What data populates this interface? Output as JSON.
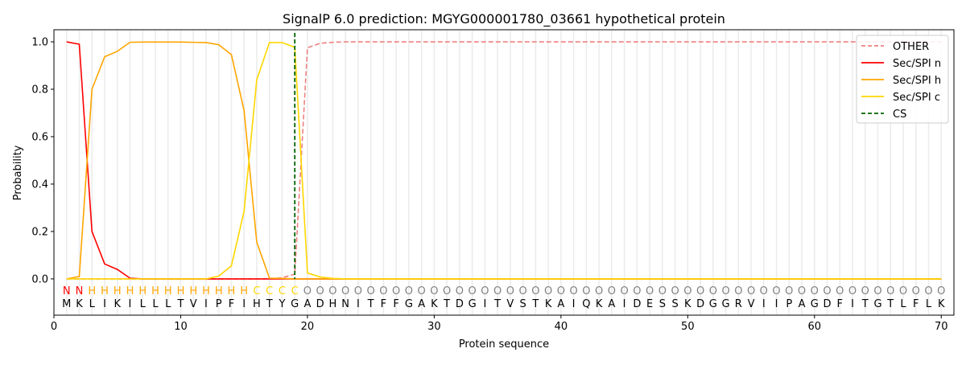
{
  "chart_data": {
    "type": "line",
    "title": "SignalP 6.0 prediction: MGYG000001780_03661 hypothetical protein",
    "xlabel": "Protein sequence",
    "ylabel": "Probability",
    "xlim": [
      0,
      71
    ],
    "ylim": [
      -0.153,
      1.051
    ],
    "xticks": [
      0,
      10,
      20,
      30,
      40,
      50,
      60,
      70
    ],
    "yticks": [
      0.0,
      0.2,
      0.4,
      0.6,
      0.8,
      1.0
    ],
    "ytick_labels": [
      "0.0",
      "0.2",
      "0.4",
      "0.6",
      "0.8",
      "1.0"
    ],
    "grid": "vertical per residue",
    "legend_position": "top-right",
    "sequence": "MKLIKILLLTVIPFIHTYGADHNITFFGAKTDGITVSTKAIQKAIDESSKDGGRVIIPAGDFITGTLFLK",
    "region_labels": "NNHHHHHHHHHHHHHCCCCOOOOOOOOOOOOOOOOOOOOOOOOOOOOOOOOOOOOOOOOOOOOOOOOOOO",
    "region_colors": {
      "N": "#ff0000",
      "H": "#ffa500",
      "C": "#ffd700",
      "O": "#808080"
    },
    "cleavage_site": 19,
    "series": [
      {
        "name": "OTHER",
        "color": "#f08080",
        "dash": true,
        "values": {
          "18": 0.005,
          "19": 0.02,
          "20": 0.975,
          "21": 0.994,
          "22": 0.998,
          "from23": 1.0
        }
      },
      {
        "name": "Sec/SPI n",
        "color": "#ff0000",
        "dash": false,
        "values": {
          "1": 1.0,
          "2": 0.99,
          "3": 0.2,
          "4": 0.063,
          "5": 0.04,
          "6": 0.003
        }
      },
      {
        "name": "Sec/SPI h",
        "color": "#ffa500",
        "dash": false,
        "values": {
          "1": 0.0,
          "2": 0.01,
          "3": 0.8,
          "4": 0.937,
          "5": 0.96,
          "6": 0.998,
          "7": 0.999,
          "8": 0.999,
          "9": 0.999,
          "10": 0.999,
          "11": 0.998,
          "12": 0.997,
          "13": 0.988,
          "14": 0.946,
          "15": 0.71,
          "16": 0.155,
          "17": 0.003,
          "18": 0.002
        }
      },
      {
        "name": "Sec/SPI c",
        "color": "#ffd700",
        "dash": false,
        "values": {
          "13": 0.012,
          "14": 0.055,
          "15": 0.285,
          "16": 0.84,
          "17": 0.997,
          "18": 0.997,
          "19": 0.977,
          "20": 0.025,
          "21": 0.008,
          "22": 0.002
        }
      },
      {
        "name": "CS",
        "color": "#006400",
        "dash": true
      }
    ]
  }
}
